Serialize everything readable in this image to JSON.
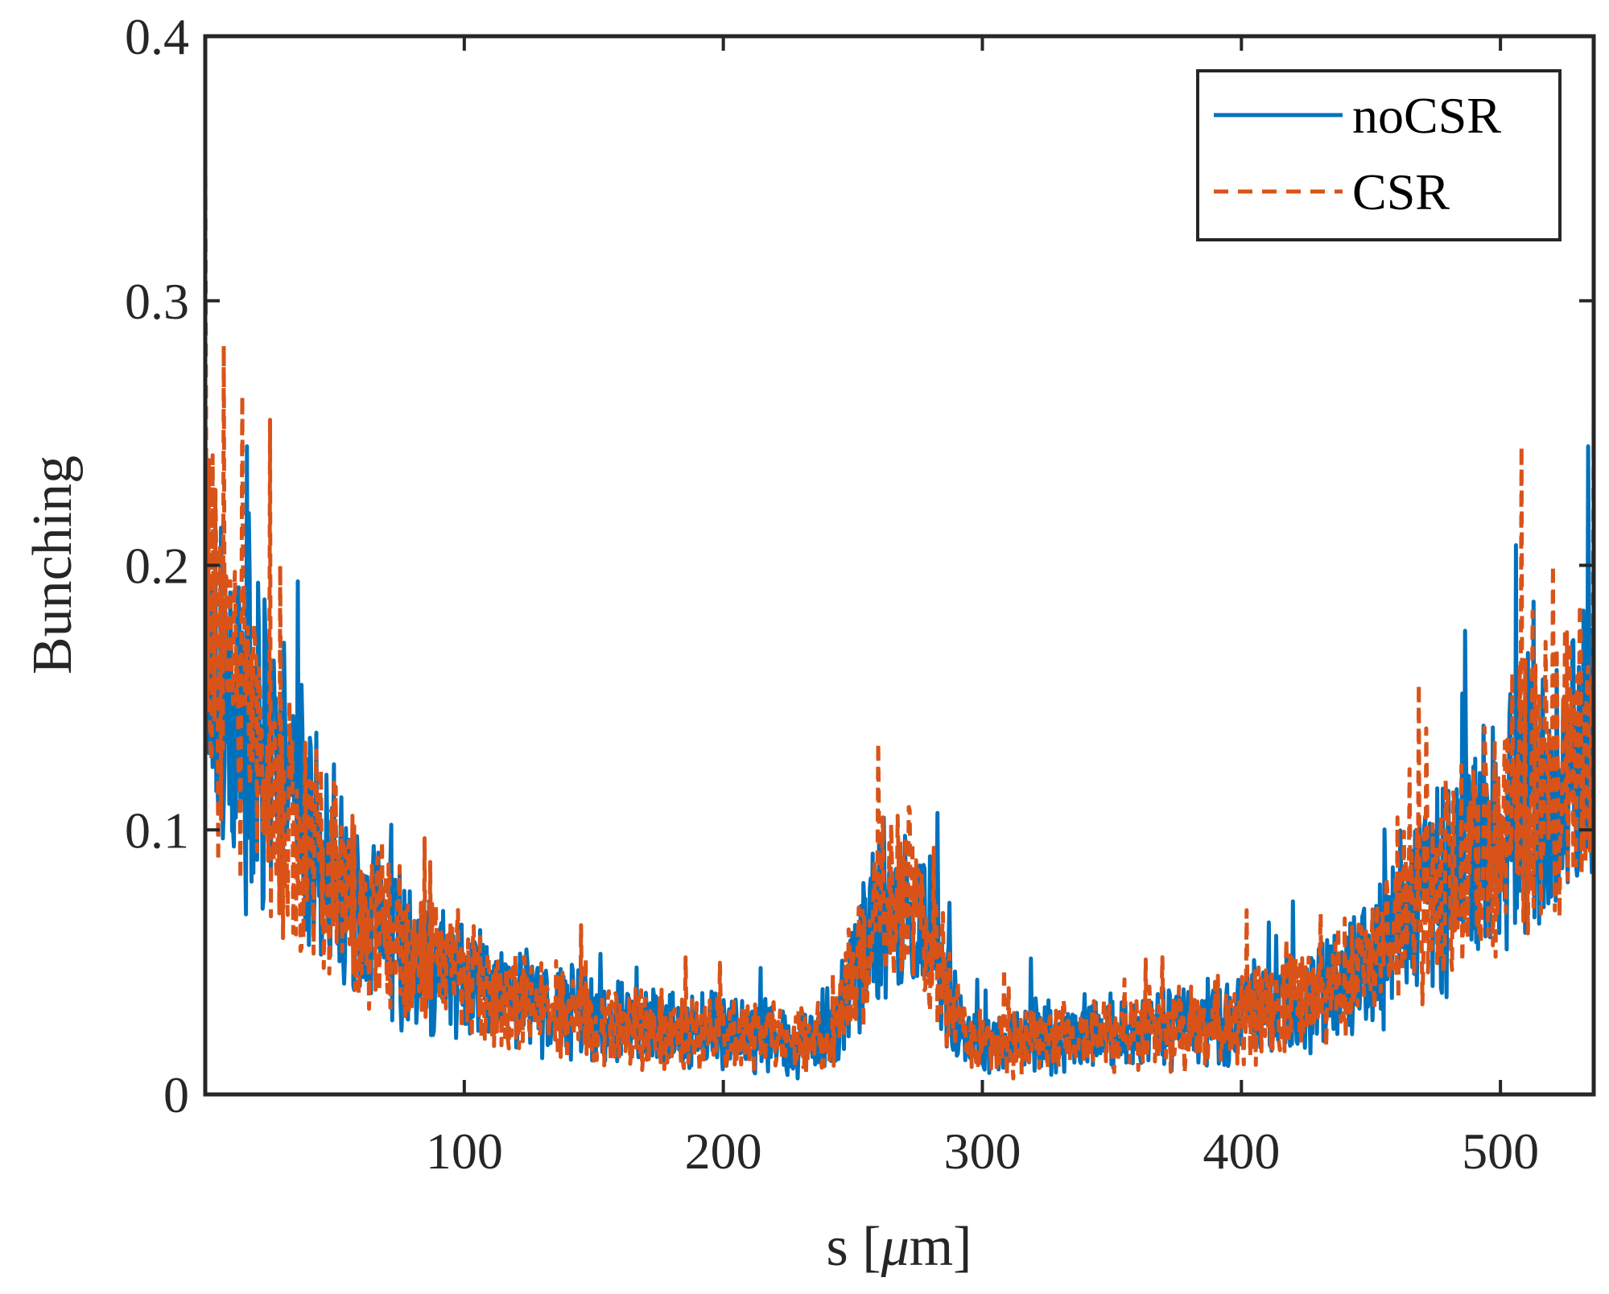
{
  "chart_data": {
    "type": "line",
    "title": "",
    "xlabel": "s [",
    "xlabel_symbol": "μ",
    "xlabel_unit": "m]",
    "ylabel": "Bunching",
    "xlim": [
      0,
      536
    ],
    "ylim": [
      0,
      0.4
    ],
    "xticks": [
      100,
      200,
      300,
      400,
      500
    ],
    "xtick_labels": [
      "100",
      "200",
      "300",
      "400",
      "500"
    ],
    "yticks": [
      0,
      0.1,
      0.2,
      0.3,
      0.4
    ],
    "ytick_labels": [
      "0",
      "0.1",
      "0.2",
      "0.3",
      "0.4"
    ],
    "grid": false,
    "legend_position": "top-right",
    "envelope": {
      "x": [
        0,
        10,
        20,
        30,
        40,
        50,
        60,
        70,
        80,
        90,
        100,
        110,
        120,
        130,
        140,
        150,
        160,
        170,
        180,
        190,
        200,
        210,
        220,
        230,
        240,
        245,
        250,
        255,
        260,
        265,
        270,
        275,
        280,
        285,
        290,
        295,
        300,
        310,
        320,
        330,
        340,
        350,
        360,
        370,
        380,
        390,
        400,
        410,
        420,
        430,
        440,
        450,
        460,
        470,
        480,
        490,
        500,
        510,
        520,
        530,
        536
      ],
      "y": [
        0.2,
        0.145,
        0.13,
        0.112,
        0.095,
        0.08,
        0.068,
        0.06,
        0.052,
        0.046,
        0.042,
        0.038,
        0.035,
        0.032,
        0.03,
        0.028,
        0.027,
        0.026,
        0.025,
        0.024,
        0.023,
        0.022,
        0.021,
        0.02,
        0.021,
        0.03,
        0.045,
        0.058,
        0.068,
        0.072,
        0.073,
        0.07,
        0.06,
        0.045,
        0.028,
        0.02,
        0.019,
        0.019,
        0.02,
        0.021,
        0.022,
        0.023,
        0.024,
        0.025,
        0.026,
        0.027,
        0.029,
        0.031,
        0.034,
        0.038,
        0.044,
        0.052,
        0.062,
        0.072,
        0.082,
        0.092,
        0.102,
        0.112,
        0.12,
        0.128,
        0.13
      ]
    },
    "series": [
      {
        "name": "noCSR",
        "color": "#0072BD",
        "style": "solid",
        "seed": 17,
        "spike_at": [
          [
            0,
            0.27
          ],
          [
            16,
            0.245
          ],
          [
            534,
            0.245
          ]
        ]
      },
      {
        "name": "CSR",
        "color": "#D95319",
        "style": "dashed",
        "seed": 83,
        "spike_at": [
          [
            0,
            0.355
          ],
          [
            7,
            0.283
          ],
          [
            25,
            0.255
          ],
          [
            29,
            0.2
          ],
          [
            508,
            0.245
          ],
          [
            536,
            0.26
          ]
        ]
      }
    ],
    "legend": [
      {
        "label": "noCSR",
        "color": "#0072BD",
        "style": "solid"
      },
      {
        "label": "CSR",
        "color": "#D95319",
        "style": "dashed"
      }
    ]
  }
}
